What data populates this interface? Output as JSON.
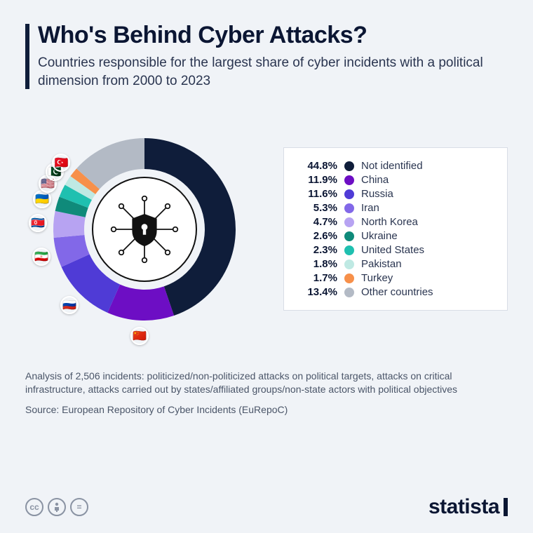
{
  "header": {
    "title": "Who's Behind Cyber Attacks?",
    "subtitle": "Countries responsible for the largest share of cyber incidents with a political dimension from 2000 to 2023"
  },
  "chart": {
    "type": "donut",
    "background_color": "#f0f3f7",
    "donut_outer_radius": 130,
    "donut_inner_radius": 86,
    "center_icon": "shield-lock-network",
    "segments": [
      {
        "label": "Not identified",
        "value": 44.8,
        "color": "#0f1d3a",
        "flag": null
      },
      {
        "label": "China",
        "value": 11.9,
        "color": "#6d0ec4",
        "flag": "🇨🇳"
      },
      {
        "label": "Russia",
        "value": 11.6,
        "color": "#4f3bd6",
        "flag": "🇷🇺"
      },
      {
        "label": "Iran",
        "value": 5.3,
        "color": "#8268e8",
        "flag": "🇮🇷"
      },
      {
        "label": "North Korea",
        "value": 4.7,
        "color": "#b7a3f2",
        "flag": "🇰🇵"
      },
      {
        "label": "Ukraine",
        "value": 2.6,
        "color": "#0f8a7a",
        "flag": "🇺🇦"
      },
      {
        "label": "United States",
        "value": 2.3,
        "color": "#1fc0b0",
        "flag": "🇺🇸"
      },
      {
        "label": "Pakistan",
        "value": 1.8,
        "color": "#bfe9e3",
        "flag": "🇵🇰"
      },
      {
        "label": "Turkey",
        "value": 1.7,
        "color": "#f7904a",
        "flag": "🇹🇷"
      },
      {
        "label": "Other countries",
        "value": 13.4,
        "color": "#b3bac5",
        "flag": null
      }
    ]
  },
  "footnote": "Analysis of 2,506 incidents: politicized/non-politicized attacks on political targets, attacks on critical infrastructure, attacks carried out by states/affiliated groups/non-state actors with political objectives",
  "source_label": "Source: European Repository of Cyber Incidents (EuRepoC)",
  "brand": "statista",
  "license_icons": [
    "cc",
    "by",
    "nd"
  ]
}
